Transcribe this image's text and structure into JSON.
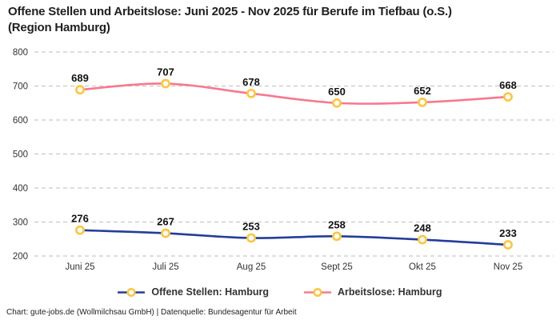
{
  "title": {
    "line1": "Offene Stellen und Arbeitslose: Juni 2025 - Nov 2025 für Berufe im Tiefbau (o.S.)",
    "line2": "(Region Hamburg)"
  },
  "footer": {
    "text": "Chart: gute-jobs.de (Wollmilchsau GmbH) | Datenquelle: Bundesagentur für Arbeit"
  },
  "colors": {
    "background": "#ffffff",
    "grid": "#c9c9c9",
    "axis_text": "#333333",
    "value_label_text": "#111111",
    "marker_fill": "#ffffff",
    "marker_stroke": "#ffc53d",
    "open_positions_line": "#233d9b",
    "unemployed_line": "#f8788f"
  },
  "chart_data": {
    "type": "line",
    "title": "Offene Stellen und Arbeitslose: Juni 2025 - Nov 2025 für Berufe im Tiefbau (o.S.) (Region Hamburg)",
    "categories": [
      "Juni 25",
      "Juli 25",
      "Aug 25",
      "Sept 25",
      "Okt 25",
      "Nov 25"
    ],
    "series": [
      {
        "name": "Offene Stellen: Hamburg",
        "color": "#233d9b",
        "values": [
          276,
          267,
          253,
          258,
          248,
          233
        ]
      },
      {
        "name": "Arbeitslose: Hamburg",
        "color": "#f8788f",
        "values": [
          689,
          707,
          678,
          650,
          652,
          668
        ]
      }
    ],
    "xlabel": "",
    "ylabel": "",
    "ylim": [
      200,
      800
    ],
    "ytick_step": 100,
    "yticks": [
      200,
      300,
      400,
      500,
      600,
      700,
      800
    ],
    "grid": "horizontal-dashed",
    "legend_position": "bottom",
    "data_labels": true,
    "marker": "ring"
  }
}
